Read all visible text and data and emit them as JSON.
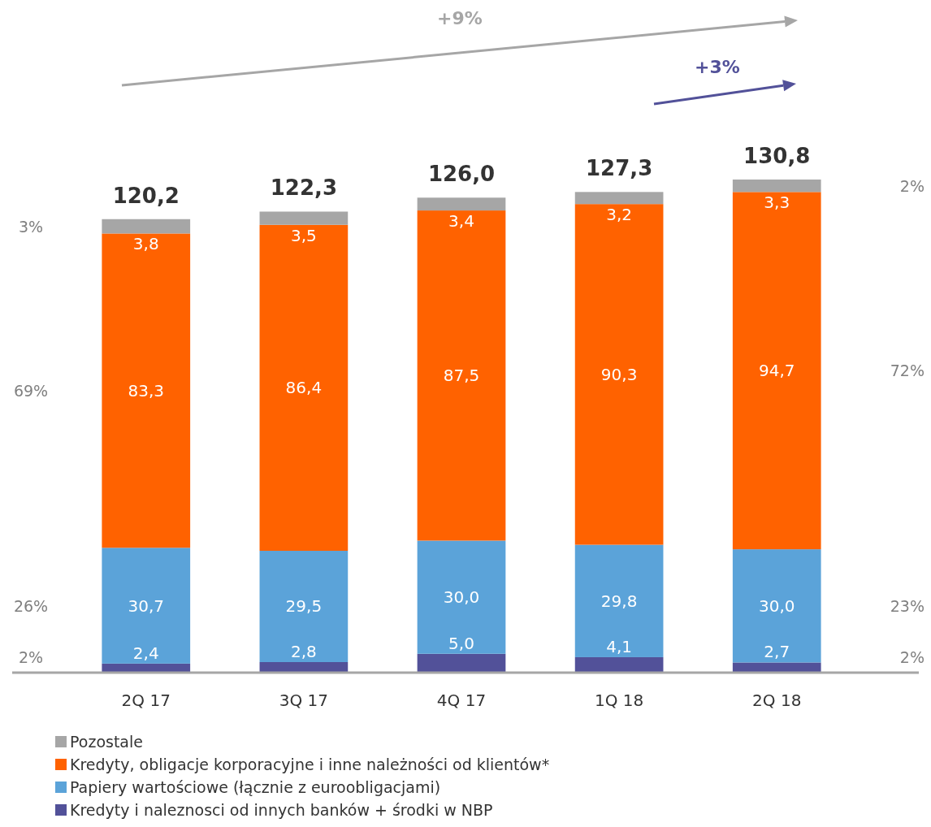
{
  "chart_data": {
    "type": "bar",
    "stacked": true,
    "relative": false,
    "categories": [
      "2Q 17",
      "3Q 17",
      "4Q 17",
      "1Q 18",
      "2Q 18"
    ],
    "series": [
      {
        "name": "Kredyty i naleznosci od innych banków + środki w NBP",
        "color": "#525199",
        "values": [
          2.4,
          2.8,
          5.0,
          4.1,
          2.7
        ],
        "value_labels": [
          "2,4",
          "2,8",
          "5,0",
          "4,1",
          "2,7"
        ]
      },
      {
        "name": "Papiery wartościowe (łącznie z euroobligacjami)",
        "color": "#5ba3d9",
        "values": [
          30.7,
          29.5,
          30.0,
          29.8,
          30.0
        ],
        "value_labels": [
          "30,7",
          "29,5",
          "30,0",
          "29,8",
          "30,0"
        ]
      },
      {
        "name": "Kredyty, obligacje korporacyjne i inne należności od klientów*",
        "color": "#ff6200",
        "values": [
          83.3,
          86.4,
          87.5,
          90.3,
          94.7
        ],
        "value_labels": [
          "83,3",
          "86,4",
          "87,5",
          "90,3",
          "94,7"
        ]
      },
      {
        "name": "Pozostale",
        "color": "#a6a6a6",
        "values": [
          3.8,
          3.5,
          3.4,
          3.2,
          3.3
        ],
        "value_labels": [
          "3,8",
          "3,5",
          "3,4",
          "3,2",
          "3,3"
        ]
      }
    ],
    "totals": [
      "120,2",
      "122,3",
      "126,0",
      "127,3",
      "130,8"
    ],
    "annotations": [
      "+9%",
      "+3%",
      "2%",
      "26%",
      "69%",
      "3%",
      "2%",
      "23%",
      "72%",
      "2%"
    ],
    "legend": "bottom",
    "grid": false
  }
}
